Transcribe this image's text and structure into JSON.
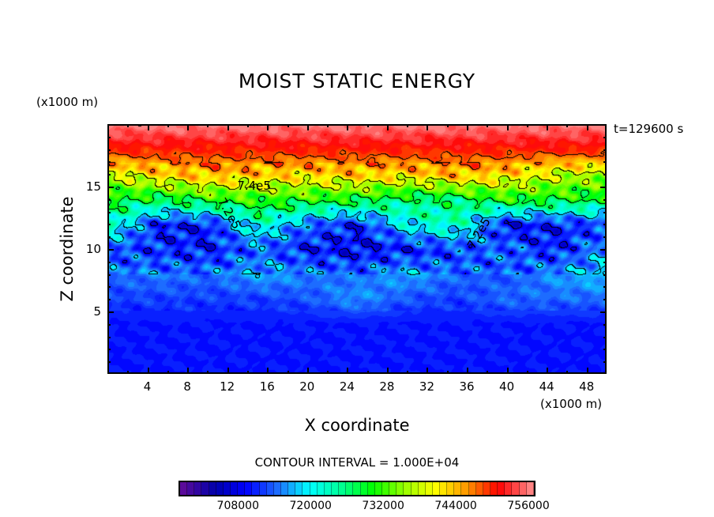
{
  "chart_data": {
    "type": "heatmap",
    "title": "MOIST STATIC ENERGY",
    "xlabel": "X coordinate",
    "ylabel": "Z coordinate",
    "x_units": "(x1000 m)",
    "y_units": "(x1000 m)",
    "time_label": "t=129600 s",
    "contour_interval_label": "CONTOUR INTERVAL = 1.000E+04",
    "xlim": [
      0,
      50
    ],
    "ylim": [
      0,
      20
    ],
    "x_ticks": [
      4,
      8,
      12,
      16,
      20,
      24,
      28,
      32,
      36,
      40,
      44,
      48
    ],
    "y_ticks": [
      5,
      10,
      15
    ],
    "contour_labels": [
      {
        "text": "7.4e5",
        "x": 13.0,
        "z": 15.0
      },
      {
        "text": "7.2e5",
        "x": 10.5,
        "z": 12.8
      },
      {
        "text": "7.2e5",
        "x": 35.5,
        "z": 11.2
      }
    ],
    "colorbar": {
      "range": [
        700000,
        759000
      ],
      "levels": 49,
      "tick_values": [
        708000,
        720000,
        732000,
        744000,
        756000
      ],
      "tick_labels": [
        "708000",
        "720000",
        "732000",
        "744000",
        "756000"
      ]
    },
    "grid_x": [
      0,
      5,
      10,
      15,
      20,
      25,
      30,
      35,
      40,
      45,
      50
    ],
    "grid_z": [
      0,
      2,
      4,
      6,
      8,
      10,
      12,
      14,
      16,
      18,
      20
    ],
    "values": [
      [
        712000,
        712000,
        712000,
        712000,
        712000,
        712000,
        712000,
        712000,
        712000,
        712000,
        712000
      ],
      [
        712000,
        712000,
        712000,
        712000,
        712000,
        712000,
        712000,
        712000,
        712000,
        712000,
        712000
      ],
      [
        712000,
        712000,
        712000,
        712000,
        712000,
        712000,
        712000,
        712000,
        712000,
        712000,
        712000
      ],
      [
        714000,
        714000,
        714000,
        714000,
        715000,
        718000,
        715000,
        714000,
        716000,
        716000,
        716000
      ],
      [
        716000,
        717000,
        716000,
        719000,
        717000,
        716000,
        719000,
        716000,
        715000,
        718000,
        720000
      ],
      [
        715000,
        713000,
        712000,
        716000,
        712000,
        711000,
        712000,
        714000,
        716000,
        712000,
        718000
      ],
      [
        725000,
        712000,
        712000,
        724000,
        716000,
        712000,
        722000,
        725000,
        711000,
        712000,
        714000
      ],
      [
        731000,
        729000,
        732000,
        733000,
        732000,
        731000,
        728000,
        728000,
        732000,
        731000,
        730000
      ],
      [
        740000,
        744000,
        746000,
        745000,
        744000,
        745000,
        744000,
        746000,
        744000,
        740000,
        738000
      ],
      [
        752000,
        752000,
        752000,
        752000,
        752000,
        752000,
        752000,
        752000,
        752000,
        752000,
        752000
      ],
      [
        758000,
        758000,
        758000,
        758000,
        758000,
        758000,
        758000,
        758000,
        758000,
        758000,
        758000
      ]
    ]
  }
}
